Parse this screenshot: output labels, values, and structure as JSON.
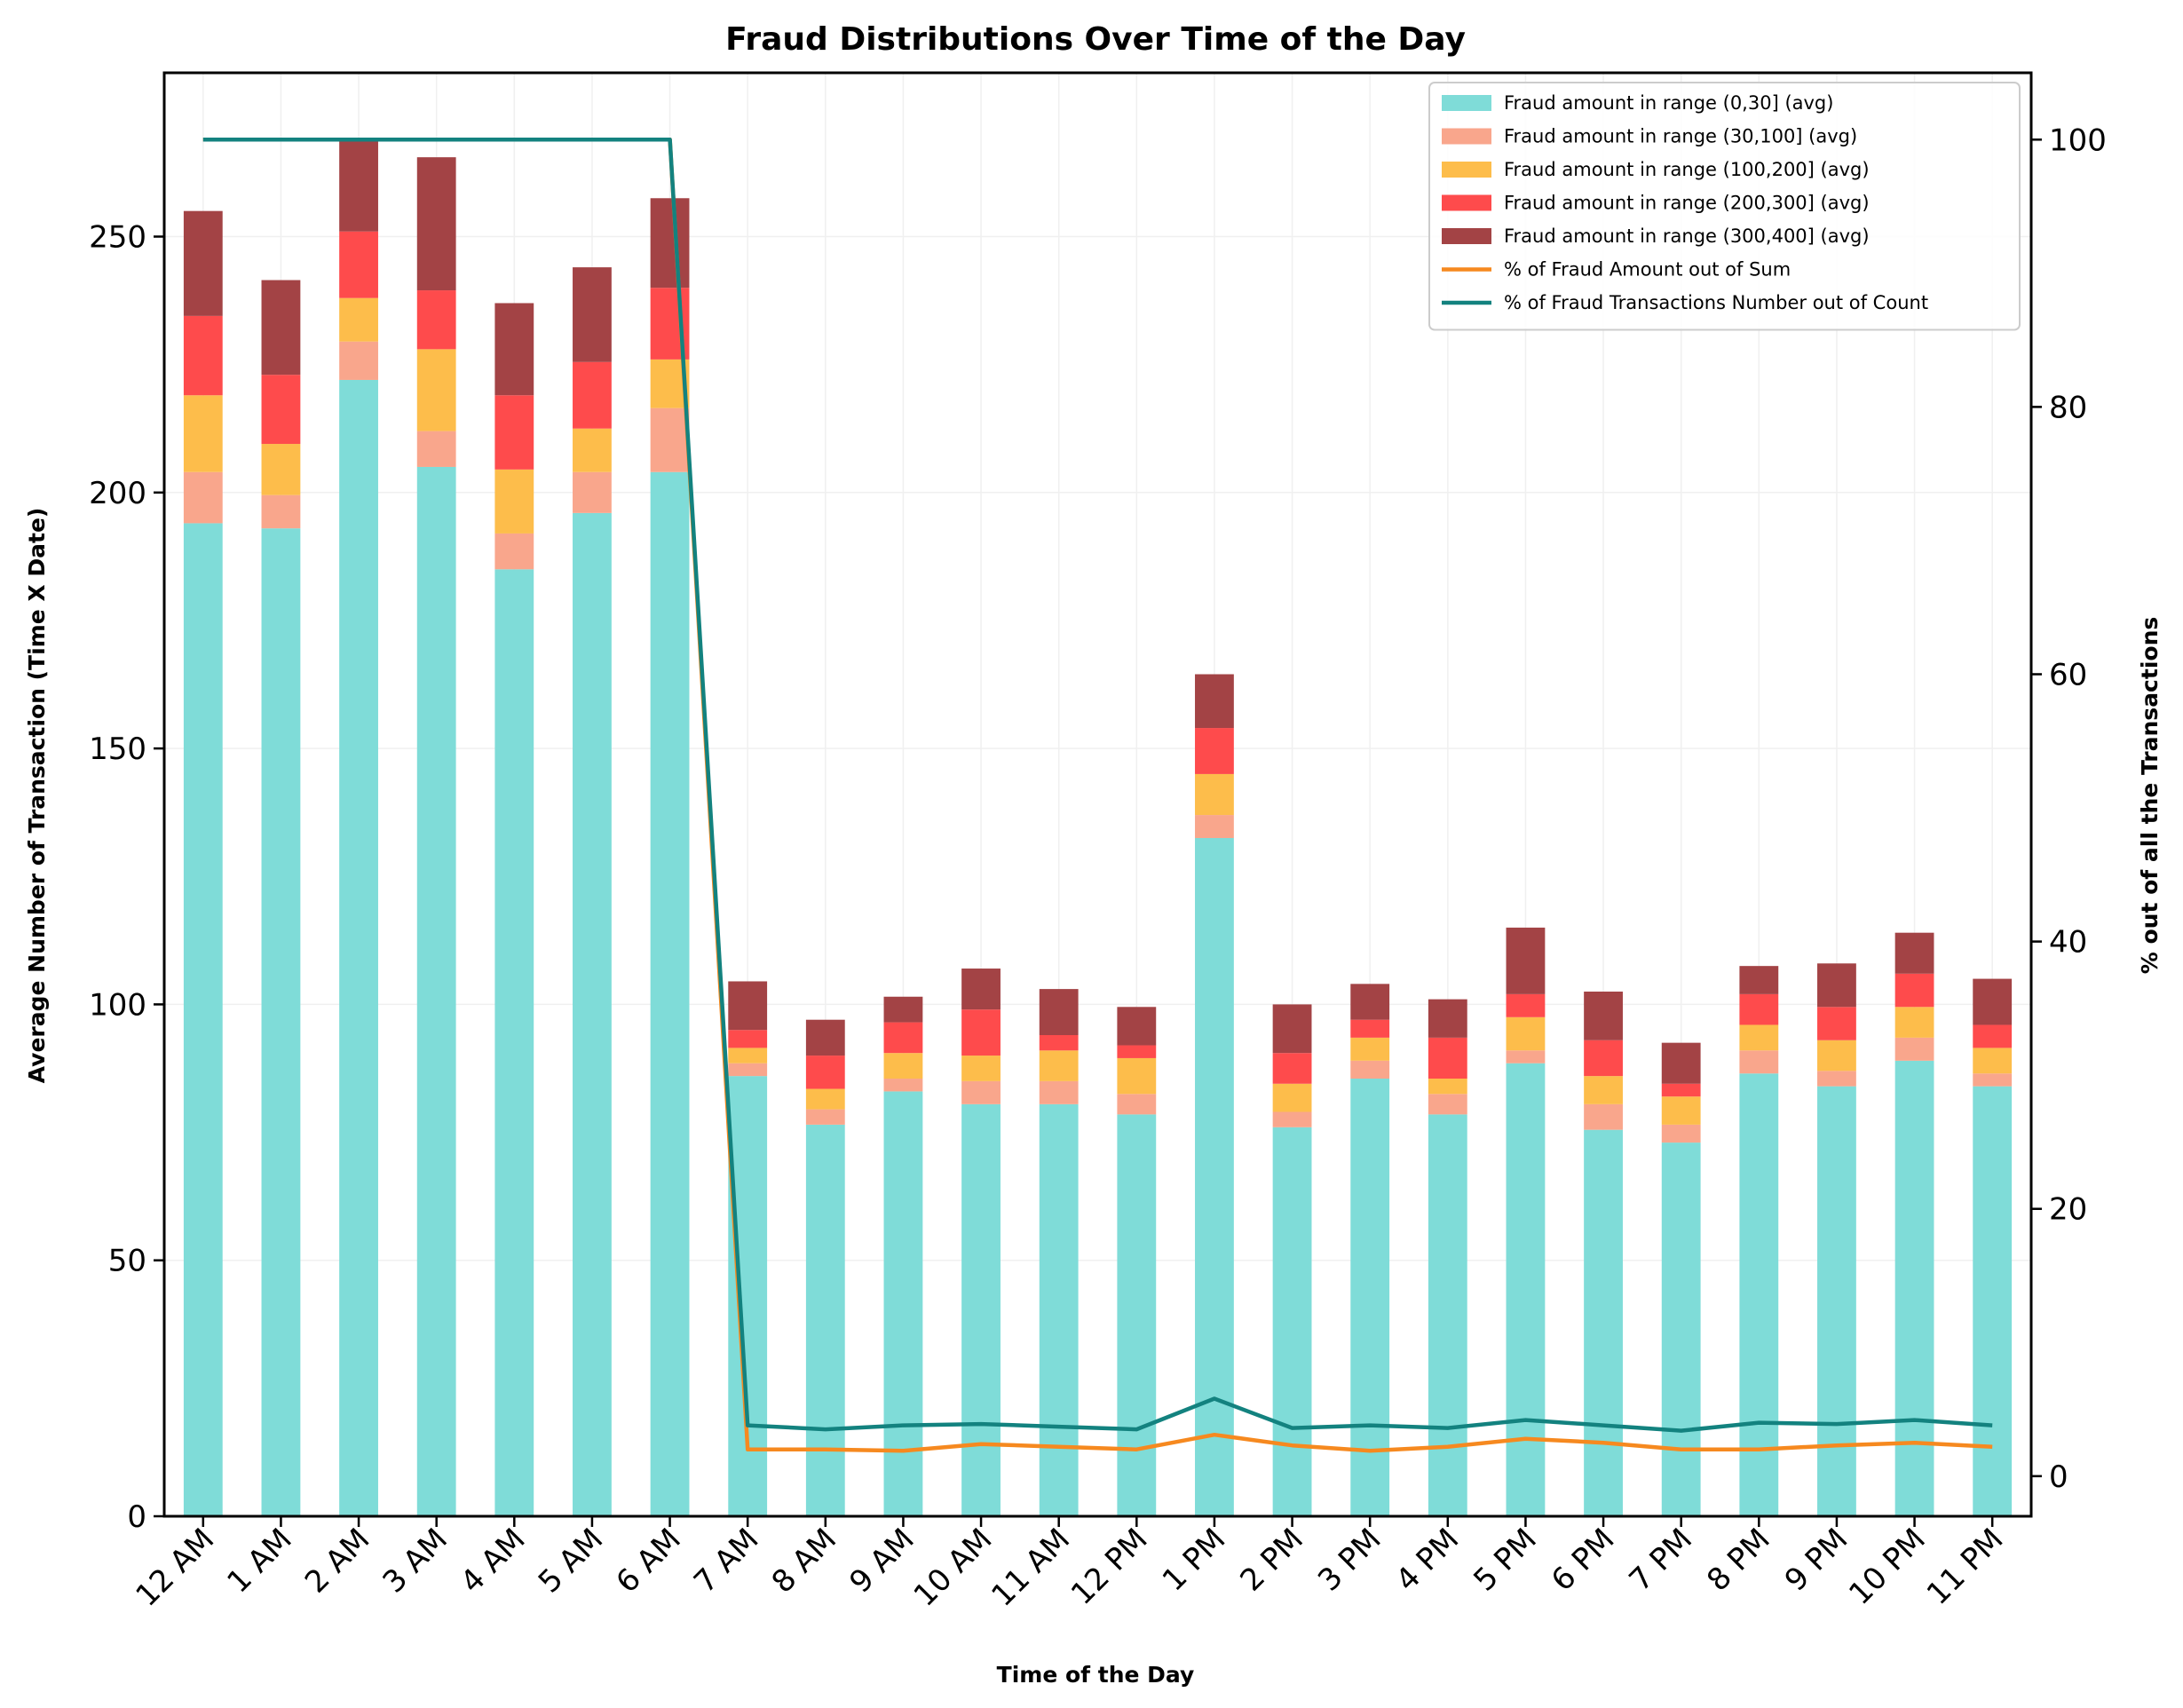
{
  "chart_data": {
    "type": "bar",
    "title": "Fraud Distributions Over Time of the Day",
    "xlabel": "Time of the Day",
    "ylabel": "Average Number of Transaction (Time X Date)",
    "y2label": "% out of all the Transactions",
    "ylim": [
      0,
      282
    ],
    "y2lim": [
      -3,
      105
    ],
    "yticks": [
      0,
      50,
      100,
      150,
      200,
      250
    ],
    "y2ticks": [
      0,
      20,
      40,
      60,
      80,
      100
    ],
    "grid": true,
    "stacked": true,
    "legend_position": "top-right",
    "categories": [
      "12 AM",
      "1 AM",
      "2 AM",
      "3 AM",
      "4 AM",
      "5 AM",
      "6 AM",
      "7 AM",
      "8 AM",
      "9 AM",
      "10 AM",
      "11 AM",
      "12 PM",
      "1 PM",
      "2 PM",
      "3 PM",
      "4 PM",
      "5 PM",
      "6 PM",
      "7 PM",
      "8 PM",
      "9 PM",
      "10 PM",
      "11 PM"
    ],
    "series": [
      {
        "name": "Fraud amount in range (0,30] (avg)",
        "color": "#7fdcd8",
        "values": [
          194,
          193,
          222,
          205,
          185,
          196,
          204,
          86,
          76.5,
          83,
          80.5,
          80.5,
          78.5,
          132.5,
          76,
          85.5,
          78.5,
          88.5,
          75.5,
          73,
          86.5,
          84,
          89,
          84
        ]
      },
      {
        "name": "Fraud amount in range (30,100] (avg)",
        "color": "#f9a68c",
        "values": [
          10,
          6.5,
          7.5,
          7,
          7,
          8,
          12.5,
          2.5,
          3,
          2.5,
          4.5,
          4.5,
          4,
          4.5,
          3,
          3.5,
          4,
          2.5,
          5,
          3.5,
          4.5,
          3,
          4.5,
          2.5
        ]
      },
      {
        "name": "Fraud amount in range (100,200] (avg)",
        "color": "#fdbd4b",
        "values": [
          15,
          10,
          8.5,
          16,
          12.5,
          8.5,
          9.5,
          3,
          4,
          5,
          5,
          6,
          7,
          8,
          5.5,
          4.5,
          3,
          6.5,
          5.5,
          5.5,
          5,
          6,
          6,
          5
        ]
      },
      {
        "name": "Fraud amount in range (200,300] (avg)",
        "color": "#fe4b4c",
        "values": [
          15.5,
          13.5,
          13,
          11.5,
          14.5,
          13,
          14,
          3.5,
          6.5,
          6,
          9,
          3,
          2.5,
          9,
          6,
          3.5,
          8,
          4.5,
          7,
          2.5,
          6,
          6.5,
          6.5,
          4.5
        ]
      },
      {
        "name": "Fraud amount in range (300,400] (avg)",
        "color": "#a34345",
        "values": [
          20.5,
          18.5,
          18,
          26,
          18,
          18.5,
          17.5,
          9.5,
          7,
          5,
          8,
          9,
          7.5,
          10.5,
          9.5,
          7,
          7.5,
          13,
          9.5,
          8,
          5.5,
          8.5,
          8,
          9
        ]
      }
    ],
    "lines": [
      {
        "name": "% of Fraud Amount out of Sum",
        "color": "#f6891f",
        "axis": "right",
        "values": [
          100,
          100,
          100,
          100,
          100,
          100,
          100,
          2.0,
          2.0,
          1.9,
          2.4,
          2.2,
          2.0,
          3.1,
          2.3,
          1.9,
          2.2,
          2.8,
          2.5,
          2.0,
          2.0,
          2.3,
          2.5,
          2.2
        ]
      },
      {
        "name": "% of Fraud Transactions Number out of Count",
        "color": "#13827f",
        "axis": "right",
        "values": [
          100,
          100,
          100,
          100,
          100,
          100,
          100,
          3.8,
          3.5,
          3.8,
          3.9,
          3.7,
          3.5,
          5.8,
          3.6,
          3.8,
          3.6,
          4.2,
          3.8,
          3.4,
          4.0,
          3.9,
          4.2,
          3.8
        ]
      }
    ]
  }
}
